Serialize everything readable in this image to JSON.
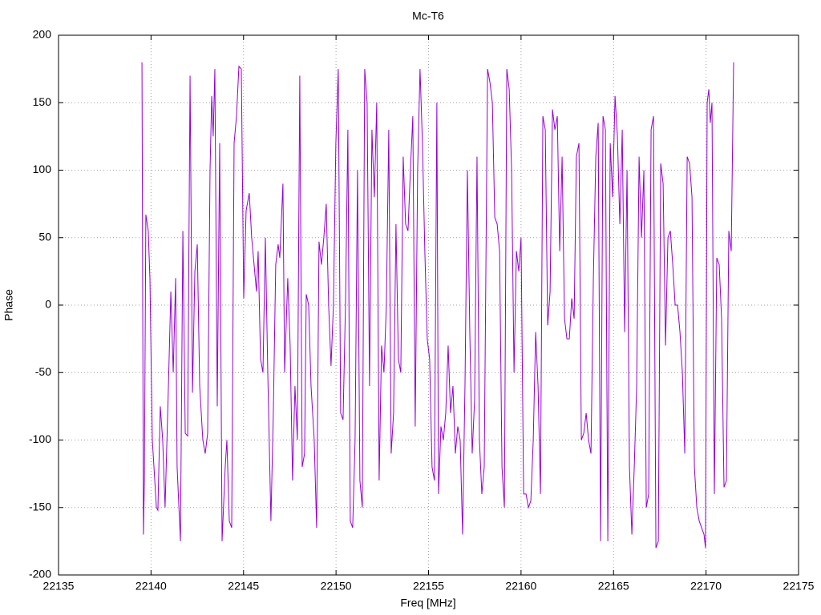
{
  "chart_data": {
    "type": "line",
    "title": "Mc-T6",
    "x_label": "Freq [MHz]",
    "y_label": "Phase",
    "xlim": [
      22135,
      22175
    ],
    "xticks": [
      22135,
      22140,
      22145,
      22150,
      22155,
      22160,
      22165,
      22170,
      22175
    ],
    "ylim": [
      -200,
      200
    ],
    "yticks": [
      -200,
      -150,
      -100,
      -50,
      0,
      50,
      100,
      150,
      200
    ],
    "grid": true,
    "color": "#9400d3",
    "x": [
      22139.51,
      22139.59,
      22139.64,
      22139.72,
      22139.85,
      22139.94,
      22140.07,
      22140.29,
      22140.37,
      22140.5,
      22140.63,
      22140.76,
      22140.94,
      22141.07,
      22141.2,
      22141.33,
      22141.41,
      22141.59,
      22141.72,
      22141.85,
      22141.98,
      22142.11,
      22142.24,
      22142.37,
      22142.5,
      22142.63,
      22142.8,
      22142.93,
      22143.06,
      22143.19,
      22143.28,
      22143.36,
      22143.45,
      22143.58,
      22143.71,
      22143.84,
      22144.01,
      22144.1,
      22144.23,
      22144.36,
      22144.49,
      22144.62,
      22144.75,
      22144.88,
      22145.01,
      22145.14,
      22145.31,
      22145.44,
      22145.57,
      22145.7,
      22145.79,
      22145.92,
      22146.05,
      22146.18,
      22146.31,
      22146.48,
      22146.61,
      22146.74,
      22146.87,
      22146.96,
      22147.13,
      22147.22,
      22147.39,
      22147.52,
      22147.65,
      22147.78,
      22147.91,
      22148.04,
      22148.17,
      22148.3,
      22148.39,
      22148.52,
      22148.65,
      22148.82,
      22148.95,
      22149.08,
      22149.21,
      22149.34,
      22149.47,
      22149.6,
      22149.73,
      22149.86,
      22149.99,
      22150.12,
      22150.25,
      22150.38,
      22150.51,
      22150.64,
      22150.77,
      22150.9,
      22151.03,
      22151.16,
      22151.29,
      22151.42,
      22151.55,
      22151.68,
      22151.81,
      22151.94,
      22152.07,
      22152.2,
      22152.33,
      22152.46,
      22152.59,
      22152.72,
      22152.85,
      22152.98,
      22153.11,
      22153.24,
      22153.37,
      22153.5,
      22153.63,
      22153.76,
      22153.89,
      22154.02,
      22154.15,
      22154.28,
      22154.41,
      22154.54,
      22154.67,
      22154.8,
      22154.93,
      22155.06,
      22155.19,
      22155.32,
      22155.45,
      22155.54,
      22155.67,
      22155.8,
      22155.93,
      22156.06,
      22156.19,
      22156.32,
      22156.45,
      22156.58,
      22156.71,
      22156.84,
      22156.97,
      22157.1,
      22157.23,
      22157.36,
      22157.49,
      22157.62,
      22157.75,
      22157.88,
      22158.01,
      22158.19,
      22158.32,
      22158.45,
      22158.58,
      22158.71,
      22158.84,
      22158.97,
      22159.1,
      22159.23,
      22159.36,
      22159.49,
      22159.62,
      22159.75,
      22159.88,
      22160.0,
      22160.14,
      22160.27,
      22160.4,
      22160.53,
      22160.66,
      22160.79,
      22160.92,
      22161.05,
      22161.18,
      22161.31,
      22161.44,
      22161.57,
      22161.7,
      22161.83,
      22161.96,
      22162.09,
      22162.22,
      22162.35,
      22162.48,
      22162.61,
      22162.74,
      22162.87,
      22162.99,
      22163.13,
      22163.26,
      22163.39,
      22163.52,
      22163.65,
      22163.78,
      22163.91,
      22164.04,
      22164.17,
      22164.3,
      22164.43,
      22164.56,
      22164.69,
      22164.82,
      22164.95,
      22165.08,
      22165.21,
      22165.34,
      22165.47,
      22165.6,
      22165.73,
      22165.86,
      22165.99,
      22166.12,
      22166.25,
      22166.38,
      22166.51,
      22166.64,
      22166.77,
      22166.9,
      22167.03,
      22167.16,
      22167.29,
      22167.42,
      22167.55,
      22167.68,
      22167.81,
      22167.94,
      22168.07,
      22168.2,
      22168.33,
      22168.46,
      22168.59,
      22168.72,
      22168.85,
      22168.98,
      22169.11,
      22169.24,
      22169.37,
      22169.5,
      22169.63,
      22169.76,
      22169.89,
      22169.97,
      22170.06,
      22170.15,
      22170.23,
      22170.32,
      22170.45,
      22170.58,
      22170.71,
      22170.84,
      22170.97,
      22171.1,
      22171.23,
      22171.36,
      22171.49
    ],
    "values": [
      180,
      -170,
      -130,
      67,
      55,
      20,
      -100,
      -150,
      -152,
      -75,
      -100,
      -150,
      -60,
      10,
      -50,
      20,
      -120,
      -175,
      55,
      -95,
      -97,
      170,
      -65,
      25,
      45,
      -60,
      -100,
      -110,
      -95,
      100,
      155,
      125,
      175,
      -75,
      120,
      -175,
      -120,
      -100,
      -160,
      -165,
      120,
      140,
      177,
      175,
      5,
      70,
      83,
      50,
      30,
      10,
      40,
      -40,
      -50,
      50,
      -50,
      -160,
      -80,
      30,
      45,
      35,
      90,
      -50,
      20,
      -30,
      -130,
      -60,
      -100,
      170,
      -120,
      -110,
      8,
      0,
      -60,
      -100,
      -165,
      47,
      30,
      50,
      75,
      0,
      -45,
      0,
      120,
      175,
      -80,
      -85,
      0,
      130,
      -160,
      -165,
      -100,
      100,
      -130,
      -150,
      175,
      150,
      -60,
      130,
      80,
      150,
      -130,
      -30,
      -50,
      0,
      130,
      -110,
      -80,
      60,
      -40,
      -50,
      110,
      60,
      55,
      100,
      140,
      -90,
      100,
      175,
      120,
      40,
      -25,
      -40,
      -120,
      -130,
      150,
      -140,
      -90,
      -100,
      -80,
      -30,
      -80,
      -60,
      -110,
      -90,
      -100,
      -170,
      -60,
      100,
      -20,
      -110,
      -70,
      110,
      -100,
      -140,
      -120,
      175,
      165,
      150,
      65,
      60,
      40,
      -120,
      -150,
      175,
      160,
      100,
      -50,
      40,
      25,
      50,
      -140,
      -140,
      -150,
      -145,
      -100,
      -20,
      -60,
      -140,
      140,
      130,
      -15,
      10,
      145,
      130,
      140,
      40,
      110,
      -10,
      -25,
      -25,
      5,
      -10,
      110,
      120,
      -100,
      -95,
      -80,
      -100,
      -110,
      20,
      110,
      135,
      -175,
      140,
      130,
      -175,
      120,
      80,
      155,
      125,
      60,
      130,
      -20,
      100,
      -120,
      -170,
      -120,
      -60,
      110,
      50,
      100,
      -150,
      -140,
      130,
      140,
      -180,
      -175,
      105,
      90,
      -30,
      50,
      55,
      30,
      0,
      0,
      -20,
      -50,
      -110,
      110,
      105,
      80,
      -120,
      -150,
      -160,
      -165,
      -170,
      -180,
      150,
      160,
      135,
      150,
      -140,
      35,
      30,
      -10,
      -135,
      -130,
      55,
      40,
      180
    ]
  }
}
